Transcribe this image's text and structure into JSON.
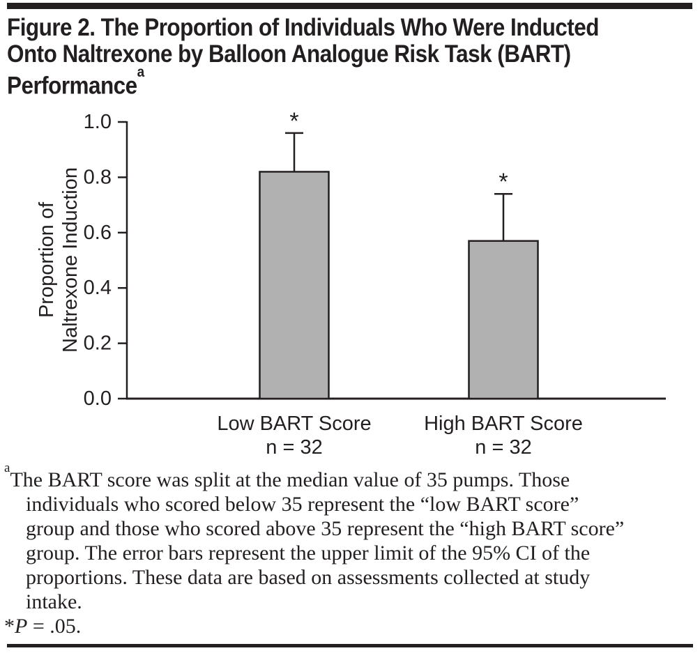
{
  "title": {
    "lines": [
      "Figure 2. The Proportion of Individuals Who Were Inducted",
      "Onto Naltrexone by Balloon Analogue Risk Task (BART)",
      "Performance"
    ],
    "superscript": "a"
  },
  "chart_data": {
    "type": "bar",
    "title": "The Proportion of Individuals Who Were Inducted Onto Naltrexone by Balloon Analogue Risk Task (BART) Performance",
    "categories": [
      "Low BART Score",
      "High BART Score"
    ],
    "n_labels": [
      "n = 32",
      "n = 32"
    ],
    "values": [
      0.82,
      0.57
    ],
    "error_upper": [
      0.96,
      0.74
    ],
    "error_bar_meaning": "upper limit of the 95% CI of the proportions",
    "significance_markers": [
      "*",
      "*"
    ],
    "xlabel": "",
    "ylabel": "Proportion of Naltrexone Induction",
    "ylabel_lines": [
      "Proportion of",
      "Naltrexone Induction"
    ],
    "ylim": [
      0.0,
      1.0
    ],
    "yticks": [
      1.0,
      0.8,
      0.6,
      0.4,
      0.2,
      0.0
    ],
    "grid": false,
    "legend": false,
    "bar_fill_color": "#b1b1b1",
    "bar_stroke_color": "#231f20",
    "axis_color": "#231f20"
  },
  "footnote": {
    "marker": "a",
    "lines": [
      "The BART score was split at the median value of 35 pumps. Those",
      "individuals who scored below 35 represent the “low BART score”",
      "group and those who scored above 35 represent the “high BART score”",
      "group. The error bars represent the upper limit of the 95% CI of the",
      "proportions. These data are based on assessments collected at study",
      "intake."
    ],
    "p_note": {
      "star": "*",
      "symbol": "P",
      "rest": " = .05."
    }
  },
  "colors": {
    "text": "#231f20",
    "bar_fill": "#b1b1b1",
    "rule": "#231f20",
    "background": "#ffffff"
  }
}
